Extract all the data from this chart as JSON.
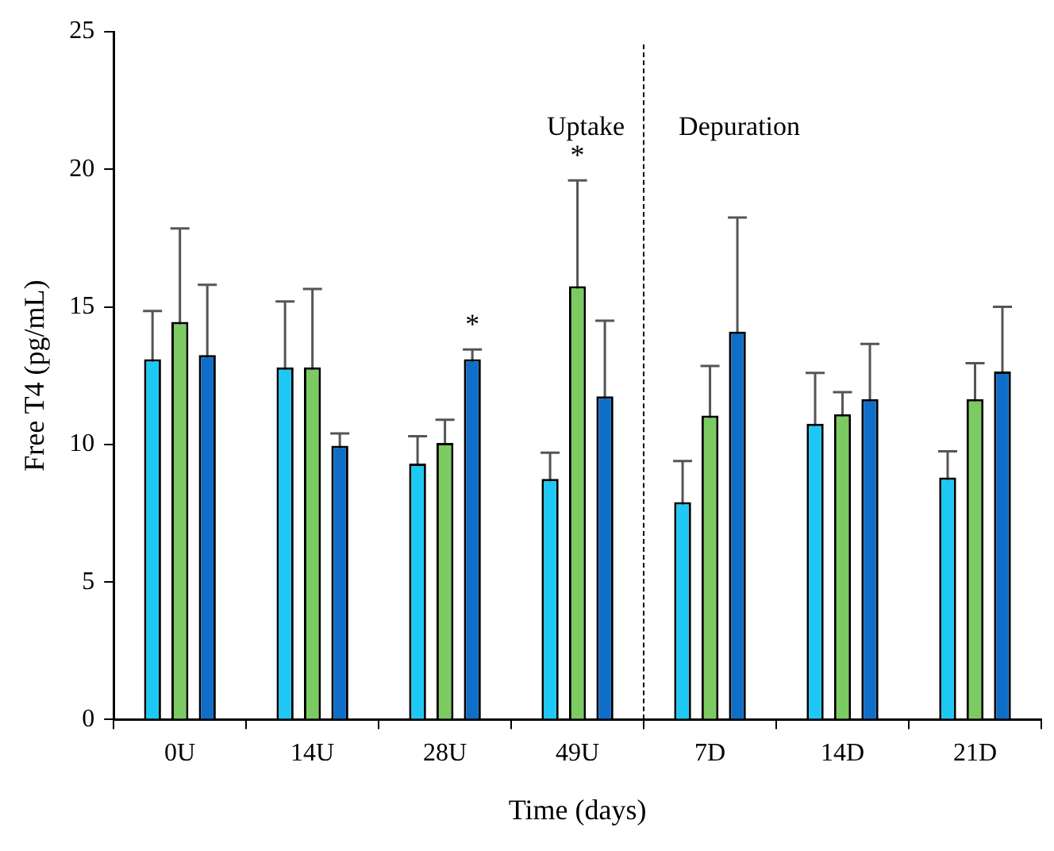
{
  "chart_data": {
    "type": "bar",
    "xlabel": "Time (days)",
    "ylabel": "Free T4 (pg/mL)",
    "categories": [
      "0U",
      "14U",
      "28U",
      "49U",
      "7D",
      "14D",
      "21D"
    ],
    "series": [
      {
        "color": "#1ec8f5",
        "values": [
          13.1,
          12.8,
          9.3,
          8.75,
          7.9,
          10.75,
          8.8
        ],
        "errors": [
          1.75,
          2.4,
          1.0,
          0.95,
          1.5,
          1.85,
          0.95
        ]
      },
      {
        "color": "#7ccb62",
        "values": [
          14.45,
          12.8,
          10.05,
          15.75,
          11.05,
          11.1,
          11.65
        ],
        "errors": [
          3.4,
          2.85,
          0.85,
          3.85,
          1.8,
          0.8,
          1.3
        ]
      },
      {
        "color": "#0f6ec8",
        "values": [
          13.25,
          9.95,
          13.1,
          11.75,
          14.1,
          11.65,
          12.65
        ],
        "errors": [
          2.55,
          0.45,
          0.35,
          2.75,
          4.15,
          2.0,
          2.35
        ]
      }
    ],
    "ylim": [
      0,
      25
    ],
    "yticks": [
      0,
      5,
      10,
      15,
      20,
      25
    ],
    "grid": false,
    "legend": false,
    "annotations": [
      "Uptake",
      "Depuration",
      "*",
      "*"
    ]
  }
}
